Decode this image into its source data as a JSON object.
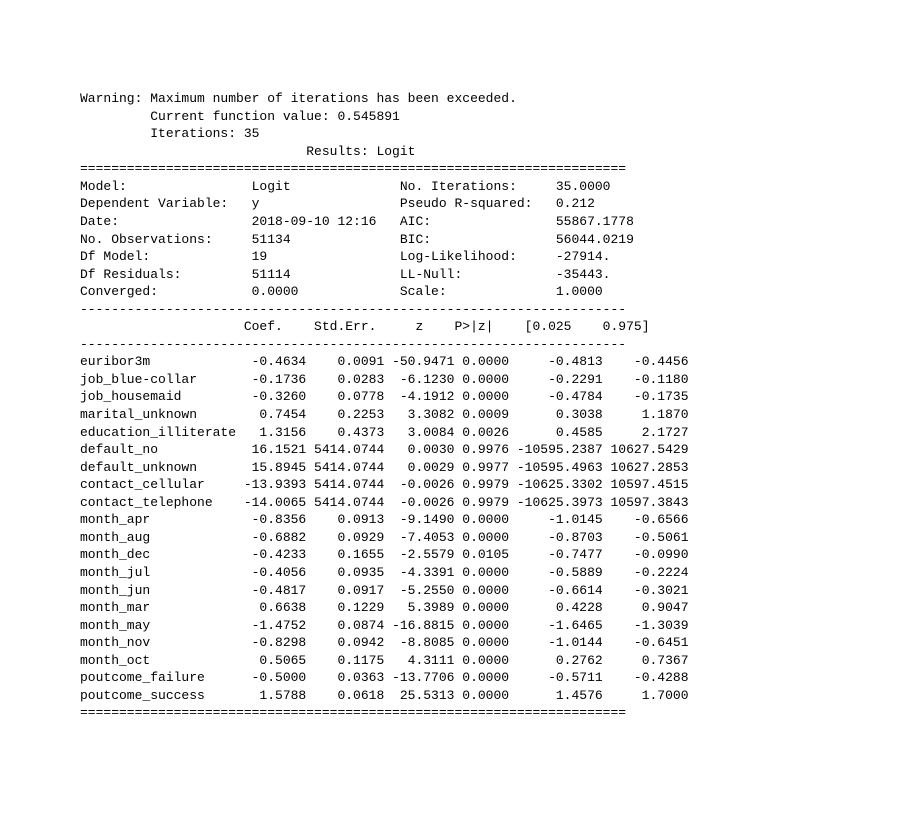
{
  "warning": "Warning: Maximum number of iterations has been exceeded.",
  "func_value": "         Current function value: 0.545891",
  "iterations": "         Iterations: 35",
  "results_title": "                             Results: Logit",
  "double_line": "======================================================================",
  "dash_line": "----------------------------------------------------------------------",
  "header_rows": [
    "Model:                Logit              No. Iterations:     35.0000   ",
    "Dependent Variable:   y                  Pseudo R-squared:   0.212     ",
    "Date:                 2018-09-10 12:16   AIC:                55867.1778",
    "No. Observations:     51134              BIC:                56044.0219",
    "Df Model:             19                 Log-Likelihood:     -27914.   ",
    "Df Residuals:         51114              LL-Null:            -35443.   ",
    "Converged:            0.0000             Scale:              1.0000    "
  ],
  "coef_header": "                     Coef.    Std.Err.     z    P>|z|    [0.025    0.975]",
  "coef_rows": [
    {
      "name": "euribor3m",
      "coef": "  -0.4634",
      "se": "    0.0091",
      "z": " -50.9471",
      "p": " 0.0000",
      "lo": "     -0.4813",
      "hi": "    -0.4456"
    },
    {
      "name": "job_blue-collar",
      "coef": "  -0.1736",
      "se": "    0.0283",
      "z": "  -6.1230",
      "p": " 0.0000",
      "lo": "     -0.2291",
      "hi": "    -0.1180"
    },
    {
      "name": "job_housemaid",
      "coef": "  -0.3260",
      "se": "    0.0778",
      "z": "  -4.1912",
      "p": " 0.0000",
      "lo": "     -0.4784",
      "hi": "    -0.1735"
    },
    {
      "name": "marital_unknown",
      "coef": "   0.7454",
      "se": "    0.2253",
      "z": "   3.3082",
      "p": " 0.0009",
      "lo": "      0.3038",
      "hi": "     1.1870"
    },
    {
      "name": "education_illiterate",
      "coef": "   1.3156",
      "se": "    0.4373",
      "z": "   3.0084",
      "p": " 0.0026",
      "lo": "      0.4585",
      "hi": "     2.1727"
    },
    {
      "name": "default_no",
      "coef": "  16.1521",
      "se": " 5414.0744",
      "z": "   0.0030",
      "p": " 0.9976",
      "lo": " -10595.2387",
      "hi": " 10627.5429"
    },
    {
      "name": "default_unknown",
      "coef": "  15.8945",
      "se": " 5414.0744",
      "z": "   0.0029",
      "p": " 0.9977",
      "lo": " -10595.4963",
      "hi": " 10627.2853"
    },
    {
      "name": "contact_cellular",
      "coef": " -13.9393",
      "se": " 5414.0744",
      "z": "  -0.0026",
      "p": " 0.9979",
      "lo": " -10625.3302",
      "hi": " 10597.4515"
    },
    {
      "name": "contact_telephone",
      "coef": " -14.0065",
      "se": " 5414.0744",
      "z": "  -0.0026",
      "p": " 0.9979",
      "lo": " -10625.3973",
      "hi": " 10597.3843"
    },
    {
      "name": "month_apr",
      "coef": "  -0.8356",
      "se": "    0.0913",
      "z": "  -9.1490",
      "p": " 0.0000",
      "lo": "     -1.0145",
      "hi": "    -0.6566"
    },
    {
      "name": "month_aug",
      "coef": "  -0.6882",
      "se": "    0.0929",
      "z": "  -7.4053",
      "p": " 0.0000",
      "lo": "     -0.8703",
      "hi": "    -0.5061"
    },
    {
      "name": "month_dec",
      "coef": "  -0.4233",
      "se": "    0.1655",
      "z": "  -2.5579",
      "p": " 0.0105",
      "lo": "     -0.7477",
      "hi": "    -0.0990"
    },
    {
      "name": "month_jul",
      "coef": "  -0.4056",
      "se": "    0.0935",
      "z": "  -4.3391",
      "p": " 0.0000",
      "lo": "     -0.5889",
      "hi": "    -0.2224"
    },
    {
      "name": "month_jun",
      "coef": "  -0.4817",
      "se": "    0.0917",
      "z": "  -5.2550",
      "p": " 0.0000",
      "lo": "     -0.6614",
      "hi": "    -0.3021"
    },
    {
      "name": "month_mar",
      "coef": "   0.6638",
      "se": "    0.1229",
      "z": "   5.3989",
      "p": " 0.0000",
      "lo": "      0.4228",
      "hi": "     0.9047"
    },
    {
      "name": "month_may",
      "coef": "  -1.4752",
      "se": "    0.0874",
      "z": " -16.8815",
      "p": " 0.0000",
      "lo": "     -1.6465",
      "hi": "    -1.3039"
    },
    {
      "name": "month_nov",
      "coef": "  -0.8298",
      "se": "    0.0942",
      "z": "  -8.8085",
      "p": " 0.0000",
      "lo": "     -1.0144",
      "hi": "    -0.6451"
    },
    {
      "name": "month_oct",
      "coef": "   0.5065",
      "se": "    0.1175",
      "z": "   4.3111",
      "p": " 0.0000",
      "lo": "      0.2762",
      "hi": "     0.7367"
    },
    {
      "name": "poutcome_failure",
      "coef": "  -0.5000",
      "se": "    0.0363",
      "z": " -13.7706",
      "p": " 0.0000",
      "lo": "     -0.5711",
      "hi": "    -0.4288"
    },
    {
      "name": "poutcome_success",
      "coef": "   1.5788",
      "se": "    0.0618",
      "z": "  25.5313",
      "p": " 0.0000",
      "lo": "      1.4576",
      "hi": "     1.7000"
    }
  ],
  "name_width": 20
}
